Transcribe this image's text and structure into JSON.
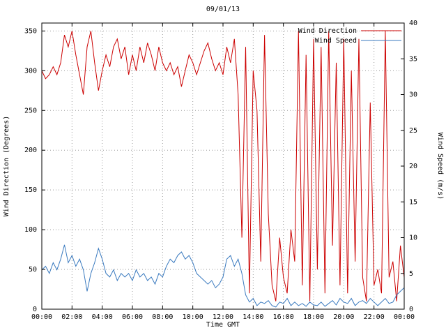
{
  "title": "09/01/13",
  "chart_data": {
    "type": "line",
    "title": "09/01/13",
    "xlabel": "Time GMT",
    "x_range_hours": [
      0,
      24
    ],
    "x_step_hours": 0.25,
    "x_tick_hours": [
      0,
      2,
      4,
      6,
      8,
      10,
      12,
      14,
      16,
      18,
      20,
      22,
      24
    ],
    "x_tick_labels": [
      "00:00",
      "02:00",
      "04:00",
      "06:00",
      "08:00",
      "10:00",
      "12:00",
      "14:00",
      "16:00",
      "18:00",
      "20:00",
      "22:00",
      "00:00"
    ],
    "grid": true,
    "legend_position": "top-right",
    "axes": {
      "left": {
        "label": "Wind Direction (Degrees)",
        "range": [
          0,
          360
        ],
        "ticks": [
          0,
          50,
          100,
          150,
          200,
          250,
          300,
          350
        ]
      },
      "right": {
        "label": "Wind Speed (m/s)",
        "range": [
          0,
          40
        ],
        "ticks": [
          0,
          5,
          10,
          15,
          20,
          25,
          30,
          35,
          40
        ]
      }
    },
    "series": [
      {
        "name": "Wind Direction",
        "axis": "left",
        "units": "degrees",
        "color": "#cc0000",
        "values": [
          300,
          290,
          295,
          305,
          295,
          310,
          345,
          330,
          350,
          320,
          295,
          270,
          330,
          350,
          310,
          275,
          300,
          320,
          305,
          330,
          340,
          315,
          330,
          295,
          320,
          300,
          330,
          310,
          335,
          320,
          300,
          330,
          310,
          300,
          310,
          295,
          305,
          280,
          300,
          320,
          310,
          295,
          310,
          325,
          335,
          315,
          300,
          310,
          295,
          330,
          310,
          340,
          270,
          90,
          330,
          20,
          300,
          250,
          60,
          345,
          120,
          30,
          10,
          90,
          40,
          20,
          100,
          60,
          350,
          30,
          320,
          10,
          340,
          50,
          330,
          20,
          350,
          80,
          310,
          30,
          340,
          20,
          300,
          60,
          340,
          40,
          10,
          260,
          30,
          50,
          20,
          350,
          40,
          60,
          10,
          80,
          40
        ]
      },
      {
        "name": "Wind Speed",
        "axis": "right",
        "units": "m/s",
        "color": "#3a7abf",
        "values": [
          5.5,
          6.0,
          5.0,
          6.5,
          5.5,
          7.0,
          9.0,
          6.5,
          7.5,
          6.0,
          7.0,
          5.5,
          2.5,
          5.0,
          6.5,
          8.5,
          7.0,
          5.0,
          4.5,
          5.5,
          4.0,
          5.0,
          4.5,
          5.0,
          4.0,
          5.5,
          4.5,
          5.0,
          4.0,
          4.5,
          3.5,
          5.0,
          4.5,
          6.0,
          7.0,
          6.5,
          7.5,
          8.0,
          7.0,
          7.5,
          6.5,
          5.0,
          4.5,
          4.0,
          3.5,
          4.0,
          3.0,
          3.5,
          4.5,
          7.0,
          7.5,
          6.0,
          7.0,
          5.0,
          2.0,
          1.0,
          1.5,
          0.5,
          1.0,
          0.8,
          1.2,
          0.5,
          0.3,
          1.0,
          0.8,
          1.5,
          0.5,
          1.0,
          0.5,
          0.8,
          0.4,
          1.0,
          0.6,
          0.5,
          1.0,
          0.4,
          0.8,
          1.2,
          0.6,
          1.5,
          1.0,
          0.8,
          1.5,
          0.5,
          1.0,
          1.2,
          0.8,
          1.5,
          1.0,
          0.5,
          1.0,
          1.5,
          0.8,
          1.0,
          2.0,
          2.5,
          3.0
        ]
      }
    ],
    "style": {
      "grid_color": "#999999",
      "border_color": "#000000",
      "background": "#ffffff"
    }
  }
}
